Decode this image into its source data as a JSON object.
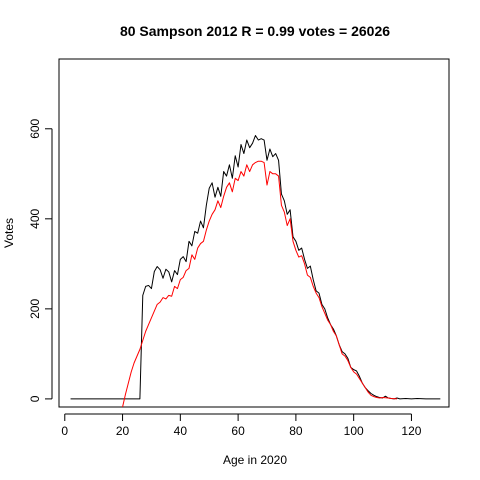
{
  "chart_data": {
    "type": "line",
    "title": "80 Sampson 2012 R = 0.99 votes = 26026",
    "xlabel": "Age in 2020",
    "ylabel": "Votes",
    "xlim": [
      -2,
      133
    ],
    "ylim": [
      -18,
      755
    ],
    "xticks": [
      0,
      20,
      40,
      60,
      80,
      100,
      120
    ],
    "yticks": [
      0,
      200,
      400,
      600
    ],
    "grid": false,
    "series": [
      {
        "color": "#000000",
        "points": [
          [
            2,
            0
          ],
          [
            10,
            0
          ],
          [
            20,
            0
          ],
          [
            26,
            0
          ],
          [
            27,
            230
          ],
          [
            28,
            250
          ],
          [
            29,
            252
          ],
          [
            30,
            245
          ],
          [
            31,
            283
          ],
          [
            32,
            294
          ],
          [
            33,
            287
          ],
          [
            34,
            268
          ],
          [
            35,
            288
          ],
          [
            36,
            282
          ],
          [
            37,
            260
          ],
          [
            38,
            285
          ],
          [
            39,
            276
          ],
          [
            40,
            310
          ],
          [
            41,
            316
          ],
          [
            42,
            305
          ],
          [
            43,
            350
          ],
          [
            44,
            340
          ],
          [
            45,
            372
          ],
          [
            46,
            368
          ],
          [
            47,
            395
          ],
          [
            48,
            380
          ],
          [
            49,
            430
          ],
          [
            50,
            468
          ],
          [
            51,
            480
          ],
          [
            52,
            448
          ],
          [
            53,
            470
          ],
          [
            54,
            450
          ],
          [
            55,
            505
          ],
          [
            56,
            495
          ],
          [
            57,
            520
          ],
          [
            58,
            490
          ],
          [
            59,
            540
          ],
          [
            60,
            515
          ],
          [
            61,
            565
          ],
          [
            62,
            545
          ],
          [
            63,
            575
          ],
          [
            64,
            558
          ],
          [
            65,
            568
          ],
          [
            66,
            585
          ],
          [
            67,
            575
          ],
          [
            68,
            578
          ],
          [
            69,
            575
          ],
          [
            70,
            530
          ],
          [
            71,
            555
          ],
          [
            72,
            538
          ],
          [
            73,
            545
          ],
          [
            74,
            530
          ],
          [
            75,
            455
          ],
          [
            76,
            440
          ],
          [
            77,
            410
          ],
          [
            78,
            420
          ],
          [
            79,
            360
          ],
          [
            80,
            350
          ],
          [
            81,
            330
          ],
          [
            82,
            335
          ],
          [
            83,
            310
          ],
          [
            84,
            290
          ],
          [
            85,
            295
          ],
          [
            86,
            265
          ],
          [
            87,
            240
          ],
          [
            88,
            235
          ],
          [
            89,
            210
          ],
          [
            90,
            200
          ],
          [
            91,
            180
          ],
          [
            92,
            165
          ],
          [
            93,
            155
          ],
          [
            94,
            140
          ],
          [
            95,
            120
          ],
          [
            96,
            105
          ],
          [
            97,
            100
          ],
          [
            98,
            90
          ],
          [
            99,
            70
          ],
          [
            100,
            65
          ],
          [
            101,
            62
          ],
          [
            102,
            50
          ],
          [
            103,
            35
          ],
          [
            104,
            25
          ],
          [
            105,
            18
          ],
          [
            106,
            12
          ],
          [
            107,
            8
          ],
          [
            108,
            5
          ],
          [
            109,
            3
          ],
          [
            110,
            2
          ],
          [
            111,
            6
          ],
          [
            112,
            2
          ],
          [
            113,
            1
          ],
          [
            114,
            0
          ],
          [
            115,
            2
          ],
          [
            116,
            0
          ],
          [
            118,
            1
          ],
          [
            120,
            0
          ],
          [
            122,
            1
          ],
          [
            125,
            0
          ],
          [
            130,
            0
          ]
        ]
      },
      {
        "color": "#ff0000",
        "points": [
          [
            20,
            -18
          ],
          [
            21,
            10
          ],
          [
            22,
            35
          ],
          [
            23,
            60
          ],
          [
            24,
            80
          ],
          [
            25,
            95
          ],
          [
            26,
            110
          ],
          [
            27,
            130
          ],
          [
            28,
            150
          ],
          [
            29,
            165
          ],
          [
            30,
            180
          ],
          [
            31,
            195
          ],
          [
            32,
            210
          ],
          [
            33,
            215
          ],
          [
            34,
            225
          ],
          [
            35,
            222
          ],
          [
            36,
            230
          ],
          [
            37,
            228
          ],
          [
            38,
            250
          ],
          [
            39,
            245
          ],
          [
            40,
            265
          ],
          [
            41,
            270
          ],
          [
            42,
            285
          ],
          [
            43,
            290
          ],
          [
            44,
            320
          ],
          [
            45,
            310
          ],
          [
            46,
            335
          ],
          [
            47,
            345
          ],
          [
            48,
            350
          ],
          [
            49,
            375
          ],
          [
            50,
            395
          ],
          [
            51,
            410
          ],
          [
            52,
            420
          ],
          [
            53,
            440
          ],
          [
            54,
            425
          ],
          [
            55,
            450
          ],
          [
            56,
            470
          ],
          [
            57,
            480
          ],
          [
            58,
            460
          ],
          [
            59,
            490
          ],
          [
            60,
            485
          ],
          [
            61,
            505
          ],
          [
            62,
            495
          ],
          [
            63,
            520
          ],
          [
            64,
            505
          ],
          [
            65,
            520
          ],
          [
            66,
            525
          ],
          [
            67,
            528
          ],
          [
            68,
            528
          ],
          [
            69,
            525
          ],
          [
            70,
            475
          ],
          [
            71,
            505
          ],
          [
            72,
            500
          ],
          [
            73,
            500
          ],
          [
            74,
            495
          ],
          [
            75,
            430
          ],
          [
            76,
            415
          ],
          [
            77,
            385
          ],
          [
            78,
            400
          ],
          [
            79,
            350
          ],
          [
            80,
            330
          ],
          [
            81,
            315
          ],
          [
            82,
            318
          ],
          [
            83,
            300
          ],
          [
            84,
            275
          ],
          [
            85,
            270
          ],
          [
            86,
            250
          ],
          [
            87,
            235
          ],
          [
            88,
            225
          ],
          [
            89,
            205
          ],
          [
            90,
            190
          ],
          [
            91,
            175
          ],
          [
            92,
            165
          ],
          [
            93,
            150
          ],
          [
            94,
            140
          ],
          [
            95,
            120
          ],
          [
            96,
            100
          ],
          [
            97,
            95
          ],
          [
            98,
            85
          ],
          [
            99,
            70
          ],
          [
            100,
            60
          ],
          [
            101,
            55
          ],
          [
            102,
            45
          ],
          [
            103,
            35
          ],
          [
            104,
            25
          ],
          [
            105,
            15
          ],
          [
            106,
            8
          ],
          [
            107,
            5
          ],
          [
            108,
            3
          ],
          [
            109,
            2
          ],
          [
            110,
            3
          ],
          [
            112,
            2
          ],
          [
            113,
            1
          ],
          [
            115,
            0
          ]
        ]
      }
    ]
  }
}
